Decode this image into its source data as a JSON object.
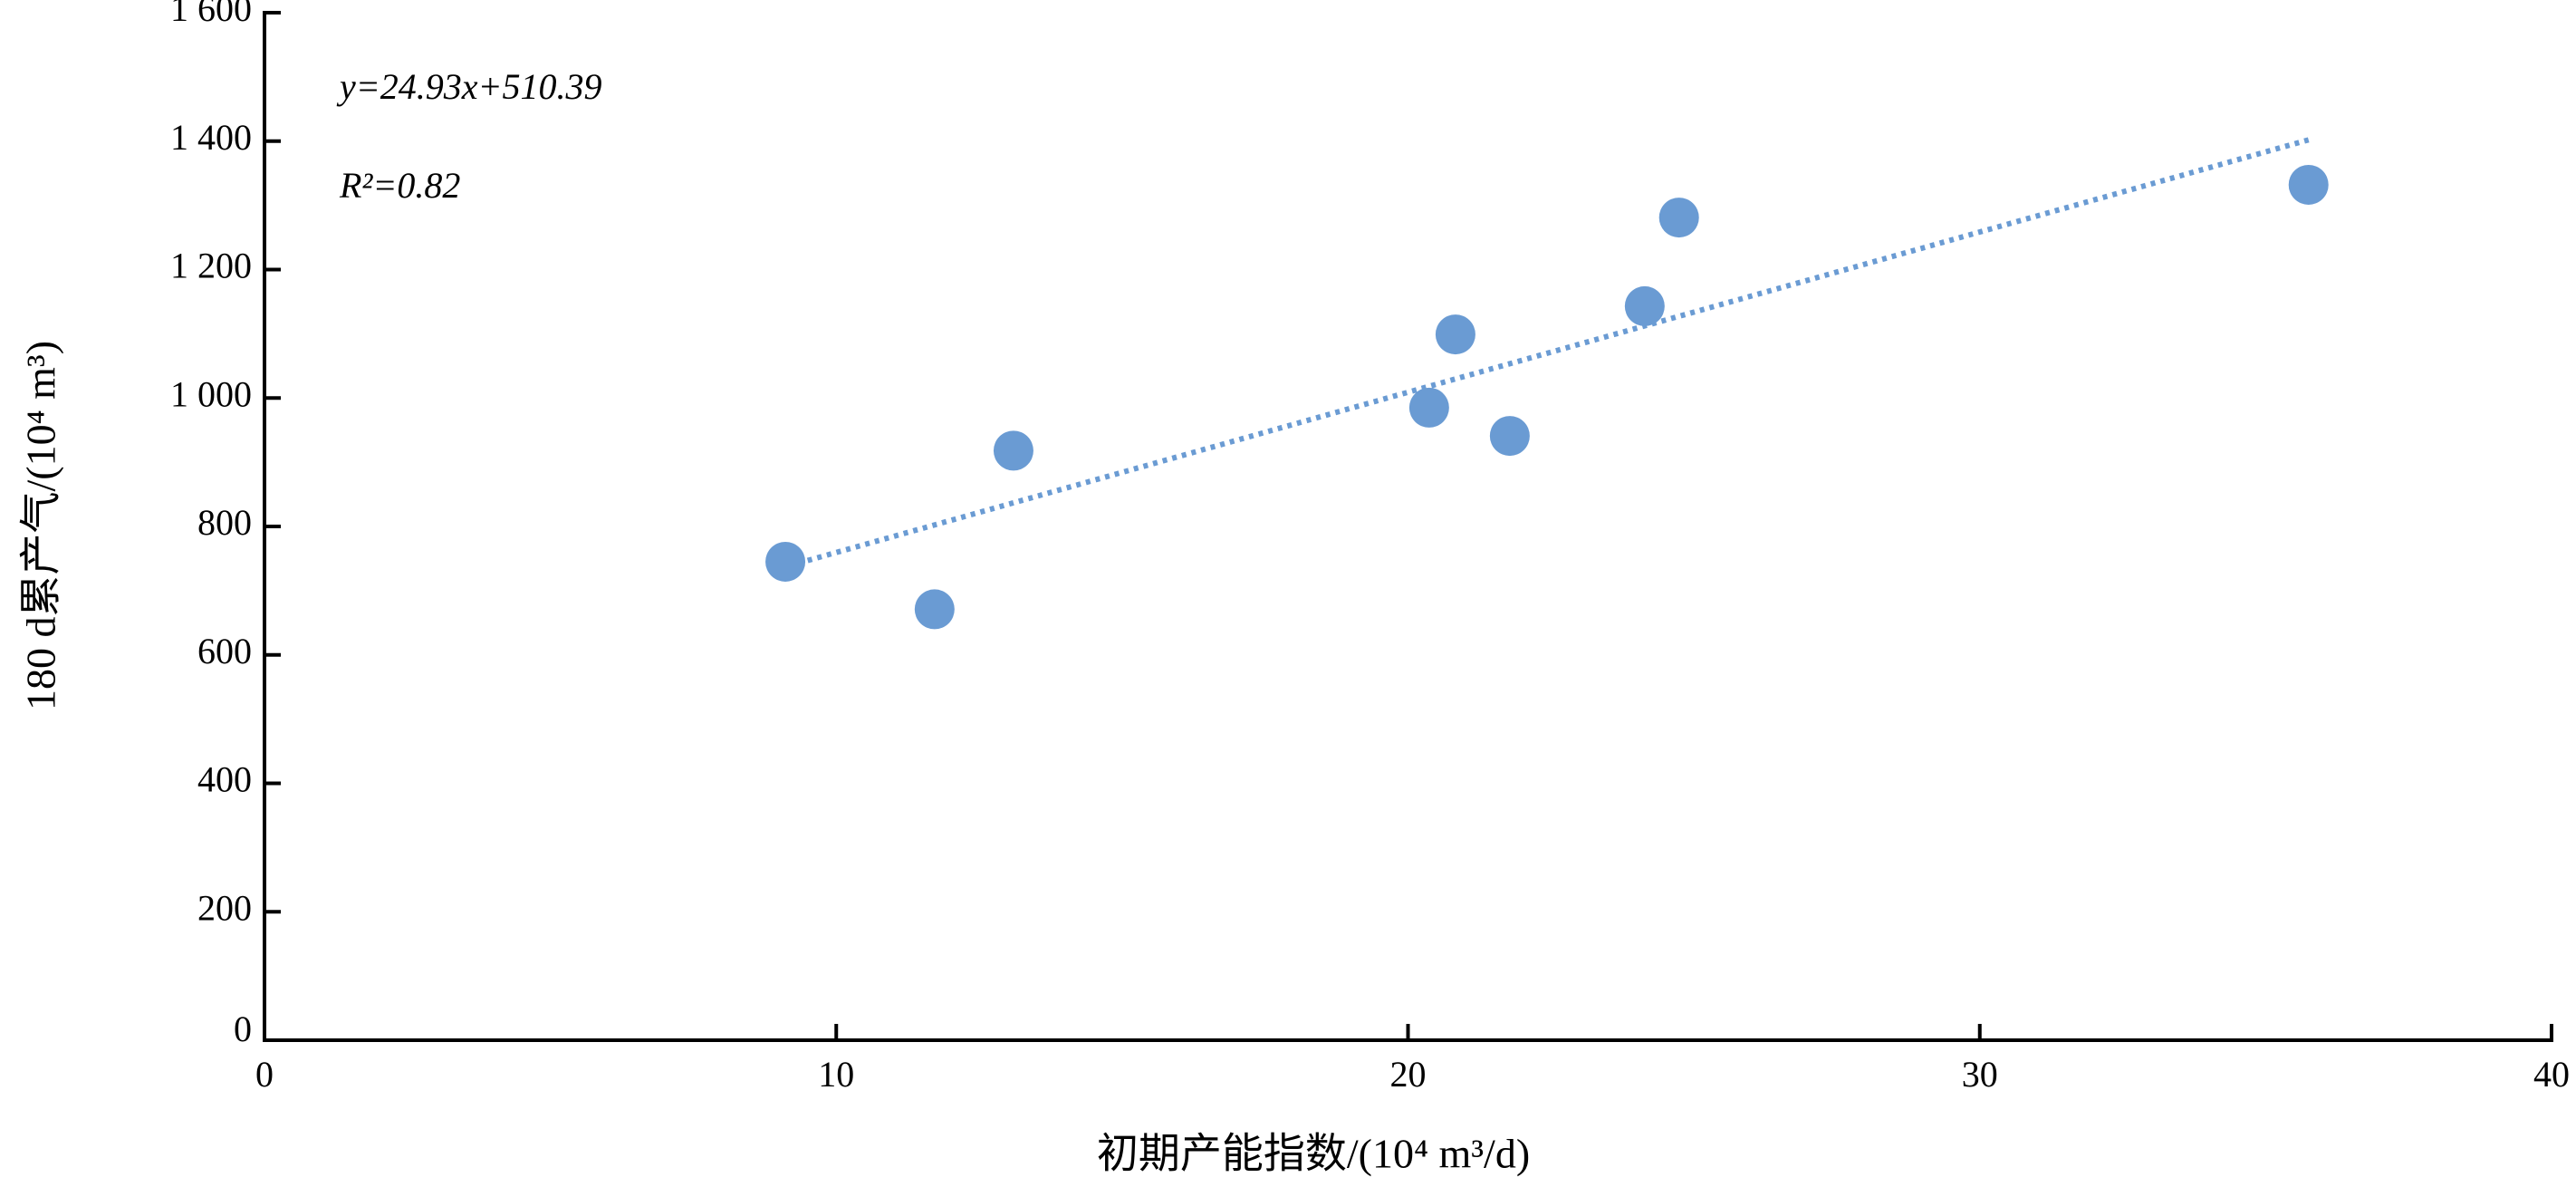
{
  "chart_data": {
    "type": "scatter",
    "x_label": "初期产能指数/(10⁴ m³/d)",
    "y_label": "180 d累产气/(10⁴ m³)",
    "annotations": [
      "y=24.93x+510.39",
      "R²=0.82"
    ],
    "series": [
      {
        "color": "#6a9bd3",
        "x": [
          9.11,
          11.72,
          13.1,
          20.37,
          20.83,
          21.78,
          24.14,
          24.74,
          35.75
        ],
        "values": [
          745,
          671,
          918,
          985,
          1099,
          941,
          1143,
          1281,
          1332
        ]
      }
    ],
    "trendline": {
      "color": "#6a9bd3",
      "x": [
        9.5,
        35.75
      ],
      "values": [
        747,
        1402
      ]
    },
    "xlim": [
      0,
      40
    ],
    "xticks": [
      0,
      10,
      20,
      30,
      40
    ],
    "ylim": [
      0,
      1600
    ],
    "yticks": [
      0,
      200,
      400,
      600,
      800,
      {
        "value": 1000,
        "label": "1 000"
      },
      {
        "value": 1200,
        "label": "1 200"
      },
      {
        "value": 1400,
        "label": "1 400"
      },
      {
        "value": 1600,
        "label": "1 600"
      }
    ],
    "grid": false
  }
}
